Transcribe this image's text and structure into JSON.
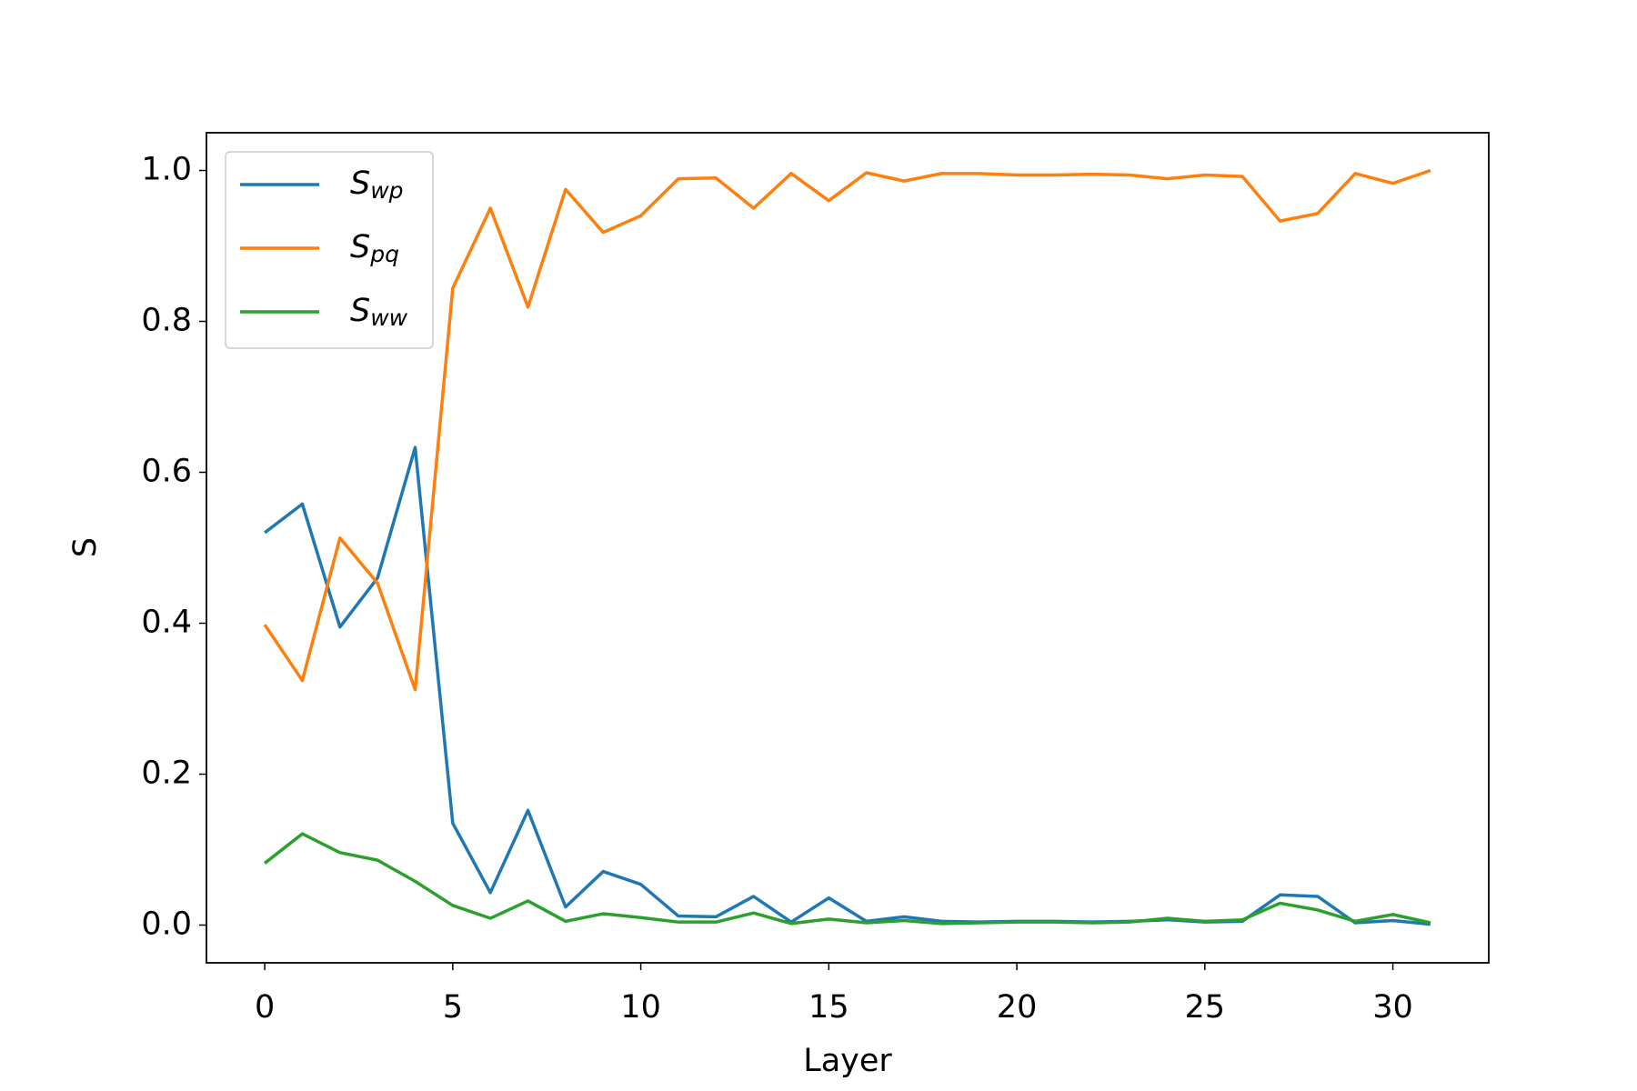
{
  "chart_data": {
    "type": "line",
    "x_label": "Layer",
    "y_label": "S",
    "x": [
      0,
      1,
      2,
      3,
      4,
      5,
      6,
      7,
      8,
      9,
      10,
      11,
      12,
      13,
      14,
      15,
      16,
      17,
      18,
      19,
      20,
      21,
      22,
      23,
      24,
      25,
      26,
      27,
      28,
      29,
      30,
      31
    ],
    "series": [
      {
        "name": "Swp",
        "color": "#1f77b4",
        "values": [
          0.52,
          0.558,
          0.395,
          0.46,
          0.633,
          0.135,
          0.043,
          0.152,
          0.024,
          0.071,
          0.054,
          0.012,
          0.011,
          0.038,
          0.004,
          0.036,
          0.005,
          0.011,
          0.005,
          0.004,
          0.005,
          0.005,
          0.004,
          0.005,
          0.007,
          0.004,
          0.005,
          0.04,
          0.038,
          0.003,
          0.006,
          0.001
        ]
      },
      {
        "name": "Spq",
        "color": "#ff7f0e",
        "values": [
          0.398,
          0.324,
          0.513,
          0.453,
          0.312,
          0.844,
          0.95,
          0.819,
          0.975,
          0.918,
          0.94,
          0.989,
          0.99,
          0.95,
          0.996,
          0.96,
          0.997,
          0.986,
          0.996,
          0.996,
          0.994,
          0.994,
          0.995,
          0.994,
          0.989,
          0.994,
          0.992,
          0.933,
          0.943,
          0.996,
          0.983,
          1.0
        ]
      },
      {
        "name": "Sww",
        "color": "#2ca02c",
        "values": [
          0.082,
          0.121,
          0.096,
          0.086,
          0.058,
          0.026,
          0.009,
          0.032,
          0.005,
          0.015,
          0.01,
          0.004,
          0.004,
          0.016,
          0.002,
          0.008,
          0.003,
          0.006,
          0.002,
          0.003,
          0.004,
          0.004,
          0.003,
          0.004,
          0.009,
          0.005,
          0.007,
          0.029,
          0.02,
          0.005,
          0.014,
          0.003
        ]
      }
    ],
    "xlim": [
      -1.55,
      32.55
    ],
    "xticks": [
      0,
      5,
      10,
      15,
      20,
      25,
      30
    ],
    "ylim": [
      -0.05,
      1.05
    ],
    "yticks": [
      {
        "value": 0,
        "label": "0.0"
      },
      0.2,
      0.4,
      0.6,
      0.8,
      {
        "value": 1,
        "label": "1.0"
      }
    ],
    "legend": "upper left"
  }
}
